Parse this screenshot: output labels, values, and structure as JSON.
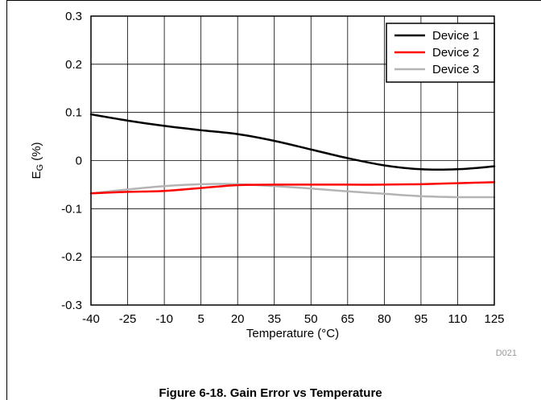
{
  "chart_data": {
    "type": "line",
    "xlabel": "Temperature (°C)",
    "ylabel_main": "E",
    "ylabel_sub": "G",
    "ylabel_unit": " (%)",
    "xlim": [
      -40,
      125
    ],
    "ylim": [
      -0.3,
      0.3
    ],
    "xticks": [
      -40,
      -25,
      -10,
      5,
      20,
      35,
      50,
      65,
      80,
      95,
      110,
      125
    ],
    "yticks": [
      0.3,
      0.2,
      0.1,
      0,
      -0.1,
      -0.2,
      -0.3
    ],
    "ytick_labels": [
      "0.3",
      "0.2",
      "0.1",
      "0",
      "-0.1",
      "-0.2",
      "-0.3"
    ],
    "grid": true,
    "legend_position": "top-right",
    "series": [
      {
        "name": "Device 1",
        "color": "#000000",
        "x": [
          -40,
          -25,
          -10,
          5,
          20,
          35,
          50,
          65,
          80,
          95,
          110,
          125
        ],
        "y": [
          0.096,
          0.083,
          0.072,
          0.063,
          0.055,
          0.041,
          0.023,
          0.005,
          -0.01,
          -0.018,
          -0.018,
          -0.012
        ]
      },
      {
        "name": "Device 2",
        "color": "#ff0000",
        "x": [
          -40,
          -25,
          -10,
          5,
          20,
          35,
          50,
          65,
          80,
          95,
          110,
          125
        ],
        "y": [
          -0.068,
          -0.065,
          -0.063,
          -0.057,
          -0.051,
          -0.05,
          -0.05,
          -0.05,
          -0.05,
          -0.049,
          -0.047,
          -0.045
        ]
      },
      {
        "name": "Device 3",
        "color": "#b4b4b4",
        "x": [
          -40,
          -25,
          -10,
          5,
          20,
          35,
          50,
          65,
          80,
          95,
          110,
          125
        ],
        "y": [
          -0.068,
          -0.06,
          -0.053,
          -0.049,
          -0.049,
          -0.053,
          -0.058,
          -0.064,
          -0.069,
          -0.074,
          -0.076,
          -0.076
        ]
      }
    ],
    "code": "D021"
  },
  "caption": "Figure 6-18. Gain Error vs Temperature"
}
